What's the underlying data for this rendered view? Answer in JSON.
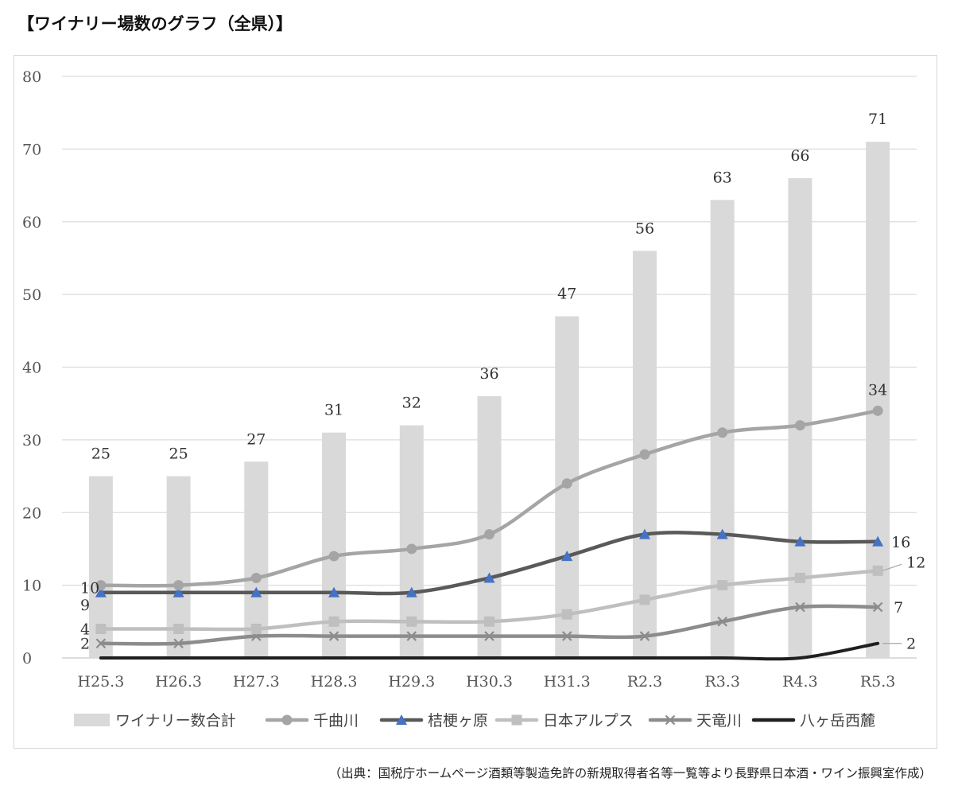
{
  "title": "【ワイナリー場数のグラフ（全県）】",
  "source_note": "（出典：国税庁ホームページ酒類等製造免許の新規取得者名等一覧等より長野県日本酒・ワイン振興室作成）",
  "chart_data": {
    "type": "bar+line",
    "categories": [
      "H25.3",
      "H26.3",
      "H27.3",
      "H28.3",
      "H29.3",
      "H30.3",
      "H31.3",
      "R2.3",
      "R3.3",
      "R4.3",
      "R5.3"
    ],
    "ylim": [
      0,
      80
    ],
    "yticks": [
      0,
      10,
      20,
      30,
      40,
      50,
      60,
      70,
      80
    ],
    "grid": true,
    "legend_position": "bottom",
    "bar_series": {
      "name": "ワイナリー数合計",
      "color": "#d9d9d9",
      "values": [
        25,
        25,
        27,
        31,
        32,
        36,
        47,
        56,
        63,
        66,
        71
      ],
      "data_labels": [
        "25",
        "25",
        "27",
        "31",
        "32",
        "36",
        "47",
        "56",
        "63",
        "66",
        "71"
      ]
    },
    "line_series": [
      {
        "name": "千曲川",
        "color": "#a5a5a5",
        "marker": "circle",
        "values": [
          10,
          10,
          11,
          14,
          15,
          17,
          24,
          28,
          31,
          32,
          34
        ],
        "start_label": "10",
        "end_label": "34"
      },
      {
        "name": "桔梗ヶ原",
        "color": "#595959",
        "marker": "triangle",
        "marker_color": "#4472c4",
        "values": [
          9,
          9,
          9,
          9,
          9,
          11,
          14,
          17,
          17,
          16,
          16
        ],
        "start_label": "9",
        "end_label": "16"
      },
      {
        "name": "日本アルプス",
        "color": "#bfbfbf",
        "marker": "square",
        "values": [
          4,
          4,
          4,
          5,
          5,
          5,
          6,
          8,
          10,
          11,
          12
        ],
        "start_label": "4",
        "end_label": "12"
      },
      {
        "name": "天竜川",
        "color": "#8c8c8c",
        "marker": "x",
        "values": [
          2,
          2,
          3,
          3,
          3,
          3,
          3,
          3,
          5,
          7,
          7
        ],
        "start_label": "2",
        "end_label": "7"
      },
      {
        "name": "八ヶ岳西麓",
        "color": "#1f1f1f",
        "marker": "none",
        "values": [
          0,
          0,
          0,
          0,
          0,
          0,
          0,
          0,
          0,
          0,
          2
        ],
        "start_label": "",
        "end_label": "2"
      }
    ]
  }
}
